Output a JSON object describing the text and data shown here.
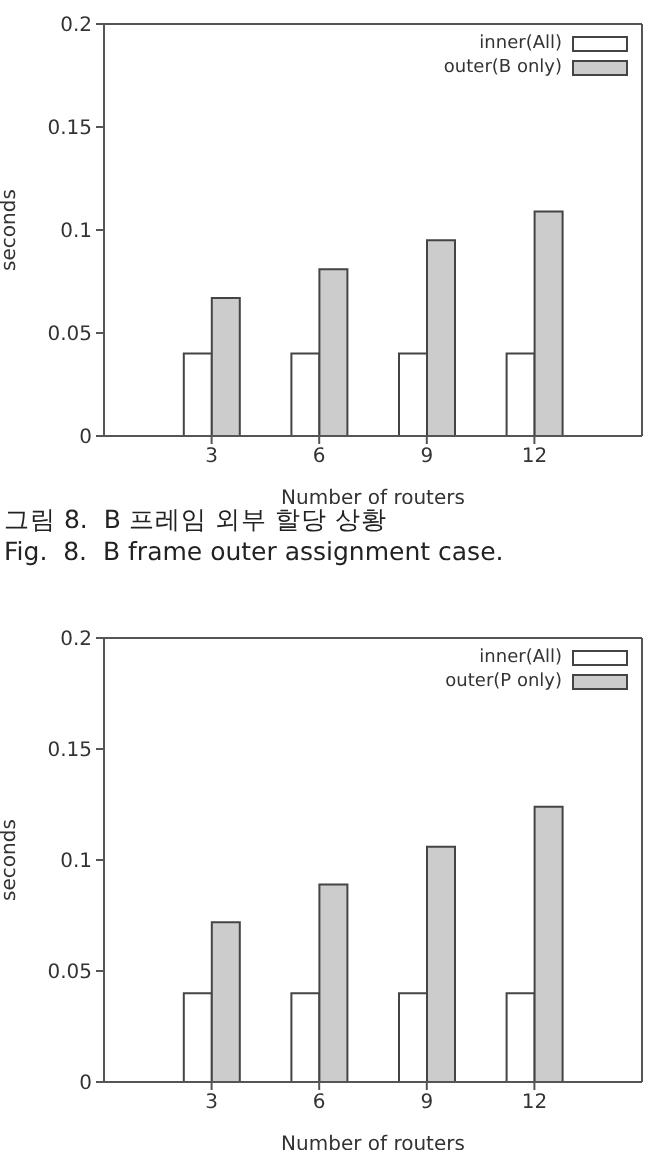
{
  "chart_data": [
    {
      "type": "bar",
      "xlabel": "Number of routers",
      "ylabel": "seconds",
      "x": [
        3,
        6,
        9,
        12
      ],
      "xlim": [
        0,
        15
      ],
      "xticks": [
        3,
        6,
        9,
        12
      ],
      "ylim": [
        0,
        0.2
      ],
      "yticks": [
        0,
        0.05,
        0.1,
        0.15,
        0.2
      ],
      "legend": "top right",
      "grid": false,
      "series": [
        {
          "name": "inner(All)",
          "color": "#ffffff",
          "values": [
            0.04,
            0.04,
            0.04,
            0.04
          ]
        },
        {
          "name": "outer(B only)",
          "color": "#cccccc",
          "values": [
            0.067,
            0.081,
            0.095,
            0.109
          ]
        }
      ],
      "annotations": [
        "그림 8.  B 프레임 외부 할당 상황",
        "Fig.  8.  B frame outer assignment case."
      ]
    },
    {
      "type": "bar",
      "xlabel": "Number of routers",
      "ylabel": "seconds",
      "x": [
        3,
        6,
        9,
        12
      ],
      "xlim": [
        0,
        15
      ],
      "xticks": [
        3,
        6,
        9,
        12
      ],
      "ylim": [
        0,
        0.2
      ],
      "yticks": [
        0,
        0.05,
        0.1,
        0.15,
        0.2
      ],
      "legend": "top right",
      "grid": false,
      "series": [
        {
          "name": "inner(All)",
          "color": "#ffffff",
          "values": [
            0.04,
            0.04,
            0.04,
            0.04
          ]
        },
        {
          "name": "outer(P only)",
          "color": "#cccccc",
          "values": [
            0.072,
            0.089,
            0.106,
            0.124
          ]
        }
      ]
    }
  ]
}
